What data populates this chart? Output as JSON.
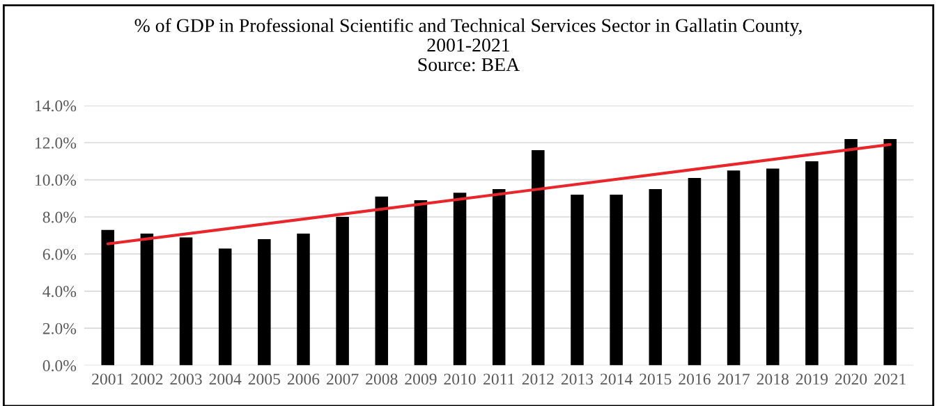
{
  "chart_data": {
    "type": "bar",
    "title": "% of GDP in Professional Scientific and Technical Services Sector in Gallatin County,\n2001-2021\nSource: BEA",
    "categories": [
      "2001",
      "2002",
      "2003",
      "2004",
      "2005",
      "2006",
      "2007",
      "2008",
      "2009",
      "2010",
      "2011",
      "2012",
      "2013",
      "2014",
      "2015",
      "2016",
      "2017",
      "2018",
      "2019",
      "2020",
      "2021"
    ],
    "series": [
      {
        "color": "#000000",
        "values": [
          7.3,
          7.1,
          6.9,
          6.3,
          6.8,
          7.1,
          8.0,
          9.1,
          8.9,
          9.3,
          9.5,
          11.6,
          9.2,
          9.2,
          9.5,
          10.1,
          10.5,
          10.6,
          11.0,
          12.2,
          12.2
        ]
      },
      {
        "type": "line",
        "color": "#e8262b",
        "values": [
          6.55,
          null,
          null,
          null,
          null,
          null,
          null,
          null,
          null,
          null,
          null,
          null,
          null,
          null,
          null,
          null,
          null,
          null,
          null,
          null,
          11.9
        ]
      }
    ],
    "ylim": [
      0,
      14
    ],
    "yticks": [
      {
        "value": 0,
        "label": "0.0%"
      },
      {
        "value": 2,
        "label": "2.0%"
      },
      {
        "value": 4,
        "label": "4.0%"
      },
      {
        "value": 6,
        "label": "6.0%"
      },
      {
        "value": 8,
        "label": "8.0%"
      },
      {
        "value": 10,
        "label": "10.0%"
      },
      {
        "value": 12,
        "label": "12.0%"
      },
      {
        "value": 14,
        "label": "14.0%"
      }
    ],
    "grid": "y"
  }
}
